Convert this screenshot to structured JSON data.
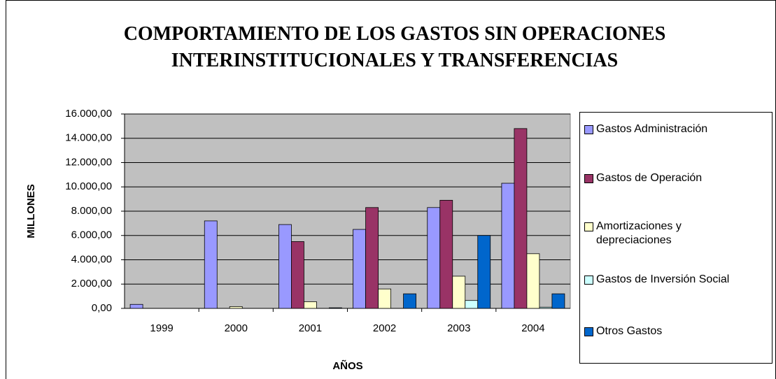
{
  "chart_data": {
    "type": "bar",
    "title": "COMPORTAMIENTO DE LOS GASTOS SIN OPERACIONES INTERINSTITUCIONALES Y TRANSFERENCIAS",
    "xlabel": "AÑOS",
    "ylabel": "MILLONES",
    "categories": [
      "1999",
      "2000",
      "2001",
      "2002",
      "2003",
      "2004"
    ],
    "series": [
      {
        "name": "Gastos Administración",
        "color": "#9999ff",
        "values": [
          330,
          7200,
          6900,
          6500,
          8300,
          10300
        ]
      },
      {
        "name": "Gastos de Operación",
        "color": "#993366",
        "values": [
          0,
          0,
          5500,
          8300,
          8900,
          14800
        ]
      },
      {
        "name": "Amortizaciones y depreciaciones",
        "color": "#ffffcc",
        "values": [
          0,
          150,
          550,
          1600,
          2650,
          4500
        ]
      },
      {
        "name": "Gastos de Inversión Social",
        "color": "#ccffff",
        "values": [
          0,
          0,
          0,
          0,
          650,
          100
        ]
      },
      {
        "name": "Otros Gastos",
        "color": "#0066cc",
        "values": [
          0,
          0,
          50,
          1200,
          6000,
          1200
        ]
      }
    ],
    "ylim": [
      0,
      16000
    ],
    "yticks": [
      {
        "value": 0,
        "label": "0,00"
      },
      {
        "value": 2000,
        "label": "2.000,00"
      },
      {
        "value": 4000,
        "label": "4.000,00"
      },
      {
        "value": 6000,
        "label": "6.000,00"
      },
      {
        "value": 8000,
        "label": "8.000,00"
      },
      {
        "value": 10000,
        "label": "10.000,00"
      },
      {
        "value": 12000,
        "label": "12.000,00"
      },
      {
        "value": 14000,
        "label": "14.000,00"
      },
      {
        "value": 16000,
        "label": "16.000,00"
      }
    ],
    "grid": true,
    "legend": "right"
  }
}
